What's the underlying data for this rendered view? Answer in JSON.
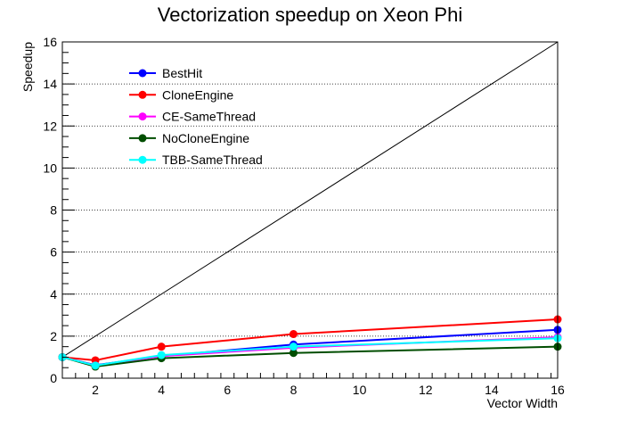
{
  "chart_data": {
    "type": "line",
    "title": "Vectorization speedup on Xeon Phi",
    "xlabel": "Vector Width",
    "ylabel": "Speedup",
    "xlim": [
      1,
      16
    ],
    "ylim": [
      0,
      16
    ],
    "x_ticks": [
      2,
      4,
      6,
      8,
      10,
      12,
      14,
      16
    ],
    "y_ticks": [
      0,
      2,
      4,
      6,
      8,
      10,
      12,
      14,
      16
    ],
    "grid": "horizontal-dotted",
    "legend_position": "top-left",
    "reference_line": {
      "x": [
        1,
        16
      ],
      "y": [
        1,
        16
      ],
      "color": "#000000"
    },
    "x": [
      1,
      2,
      4,
      8,
      16
    ],
    "series": [
      {
        "name": "BestHit",
        "color": "#0000ff",
        "values": [
          1.0,
          0.62,
          1.05,
          1.6,
          2.3
        ]
      },
      {
        "name": "CloneEngine",
        "color": "#ff0000",
        "values": [
          1.0,
          0.85,
          1.5,
          2.1,
          2.8
        ]
      },
      {
        "name": "CE-SameThread",
        "color": "#ff00ff",
        "values": [
          1.0,
          0.6,
          1.05,
          1.45,
          1.95
        ]
      },
      {
        "name": "NoCloneEngine",
        "color": "#004d00",
        "values": [
          1.0,
          0.55,
          0.95,
          1.2,
          1.5
        ]
      },
      {
        "name": "TBB-SameThread",
        "color": "#00ffff",
        "values": [
          1.0,
          0.6,
          1.1,
          1.5,
          1.9
        ]
      }
    ]
  }
}
